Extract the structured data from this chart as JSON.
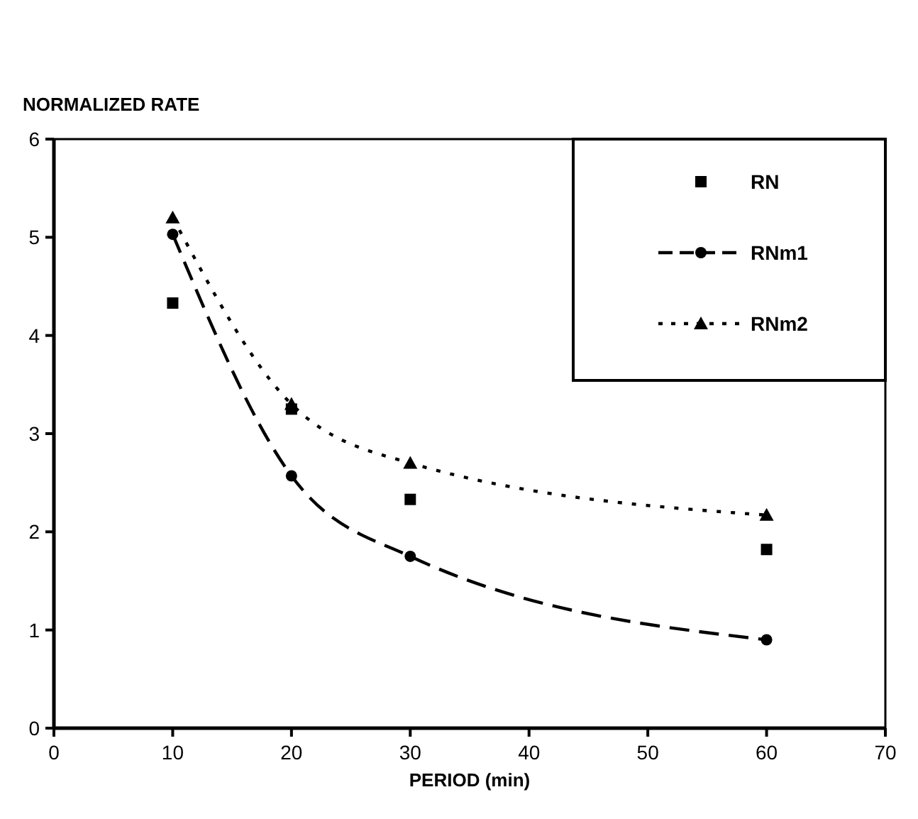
{
  "chart_data": {
    "type": "line",
    "ylabel": "NORMALIZED RATE",
    "xlabel": "PERIOD (min)",
    "x": [
      10,
      20,
      30,
      60
    ],
    "series": [
      {
        "name": "RN",
        "type": "scatter",
        "color": "#000000",
        "marker": "square",
        "line_style": "none",
        "values": [
          4.33,
          3.25,
          2.33,
          1.82
        ]
      },
      {
        "name": "RNm1",
        "color": "#000000",
        "marker": "circle",
        "line_style": "dashed",
        "values": [
          5.03,
          2.57,
          1.75,
          0.9
        ]
      },
      {
        "name": "RNm2",
        "color": "#000000",
        "marker": "triangle",
        "line_style": "dotted",
        "values": [
          5.2,
          3.3,
          2.7,
          2.17
        ]
      }
    ],
    "xlim": [
      0,
      70
    ],
    "xticks": [
      0,
      10,
      20,
      30,
      40,
      50,
      60,
      70
    ],
    "ylim": [
      0,
      6
    ],
    "yticks": [
      0,
      1,
      2,
      3,
      4,
      5,
      6
    ],
    "legend": "top right",
    "grid": false
  }
}
